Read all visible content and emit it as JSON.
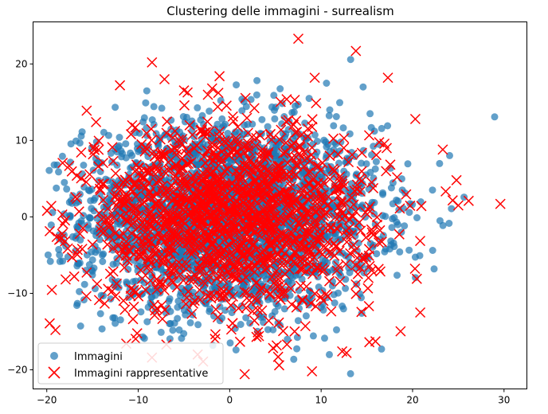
{
  "chart_data": {
    "type": "scatter",
    "title": "Clustering delle immagini - surrealism",
    "xlabel": "",
    "ylabel": "",
    "xlim": [
      -21.5,
      32.5
    ],
    "ylim": [
      -22.5,
      25.5
    ],
    "xticks": [
      -20,
      -10,
      0,
      10,
      20,
      30
    ],
    "yticks": [
      -20,
      -10,
      0,
      10,
      20
    ],
    "xtick_labels": [
      "−20",
      "−10",
      "0",
      "10",
      "20",
      "30"
    ],
    "ytick_labels": [
      "−20",
      "−10",
      "0",
      "10",
      "20"
    ],
    "grid": false,
    "legend_position": "lower-left",
    "series": [
      {
        "name": "Immagini",
        "marker": "circle",
        "color": "#1f77b4",
        "opacity": 0.7,
        "point_count_estimate": 3000,
        "distribution": {
          "center": [
            0,
            0
          ],
          "std": [
            8.0,
            6.0
          ],
          "x_range": [
            -20,
            30
          ],
          "y_range": [
            -21,
            24
          ]
        }
      },
      {
        "name": "Immagini rappresentative",
        "marker": "x",
        "color": "#ff0000",
        "point_count_estimate": 1500,
        "distribution": {
          "center": [
            0,
            0
          ],
          "std": [
            8.0,
            6.0
          ],
          "x_range": [
            -20,
            30
          ],
          "y_range": [
            -21,
            24
          ]
        },
        "notable_points": [
          {
            "x": 7.5,
            "y": 23.3
          },
          {
            "x": 13.8,
            "y": 21.7
          },
          {
            "x": -8.5,
            "y": 20.2
          },
          {
            "x": 29.6,
            "y": 1.7
          },
          {
            "x": 24.8,
            "y": 4.8
          },
          {
            "x": 25.0,
            "y": 1.5
          },
          {
            "x": 23.3,
            "y": 8.8
          },
          {
            "x": -18.3,
            "y": 0.3
          },
          {
            "x": -18.0,
            "y": -3.2
          },
          {
            "x": -17.0,
            "y": -7.8
          },
          {
            "x": 9.0,
            "y": -20.2
          },
          {
            "x": 12.3,
            "y": -17.6
          },
          {
            "x": 5.3,
            "y": -18.3
          },
          {
            "x": -3.5,
            "y": -18.0
          },
          {
            "x": -8.5,
            "y": -18.4
          },
          {
            "x": -12.0,
            "y": 17.2
          },
          {
            "x": 17.3,
            "y": 18.2
          },
          {
            "x": 9.3,
            "y": 18.2
          },
          {
            "x": 20.3,
            "y": 12.8
          }
        ]
      }
    ]
  }
}
